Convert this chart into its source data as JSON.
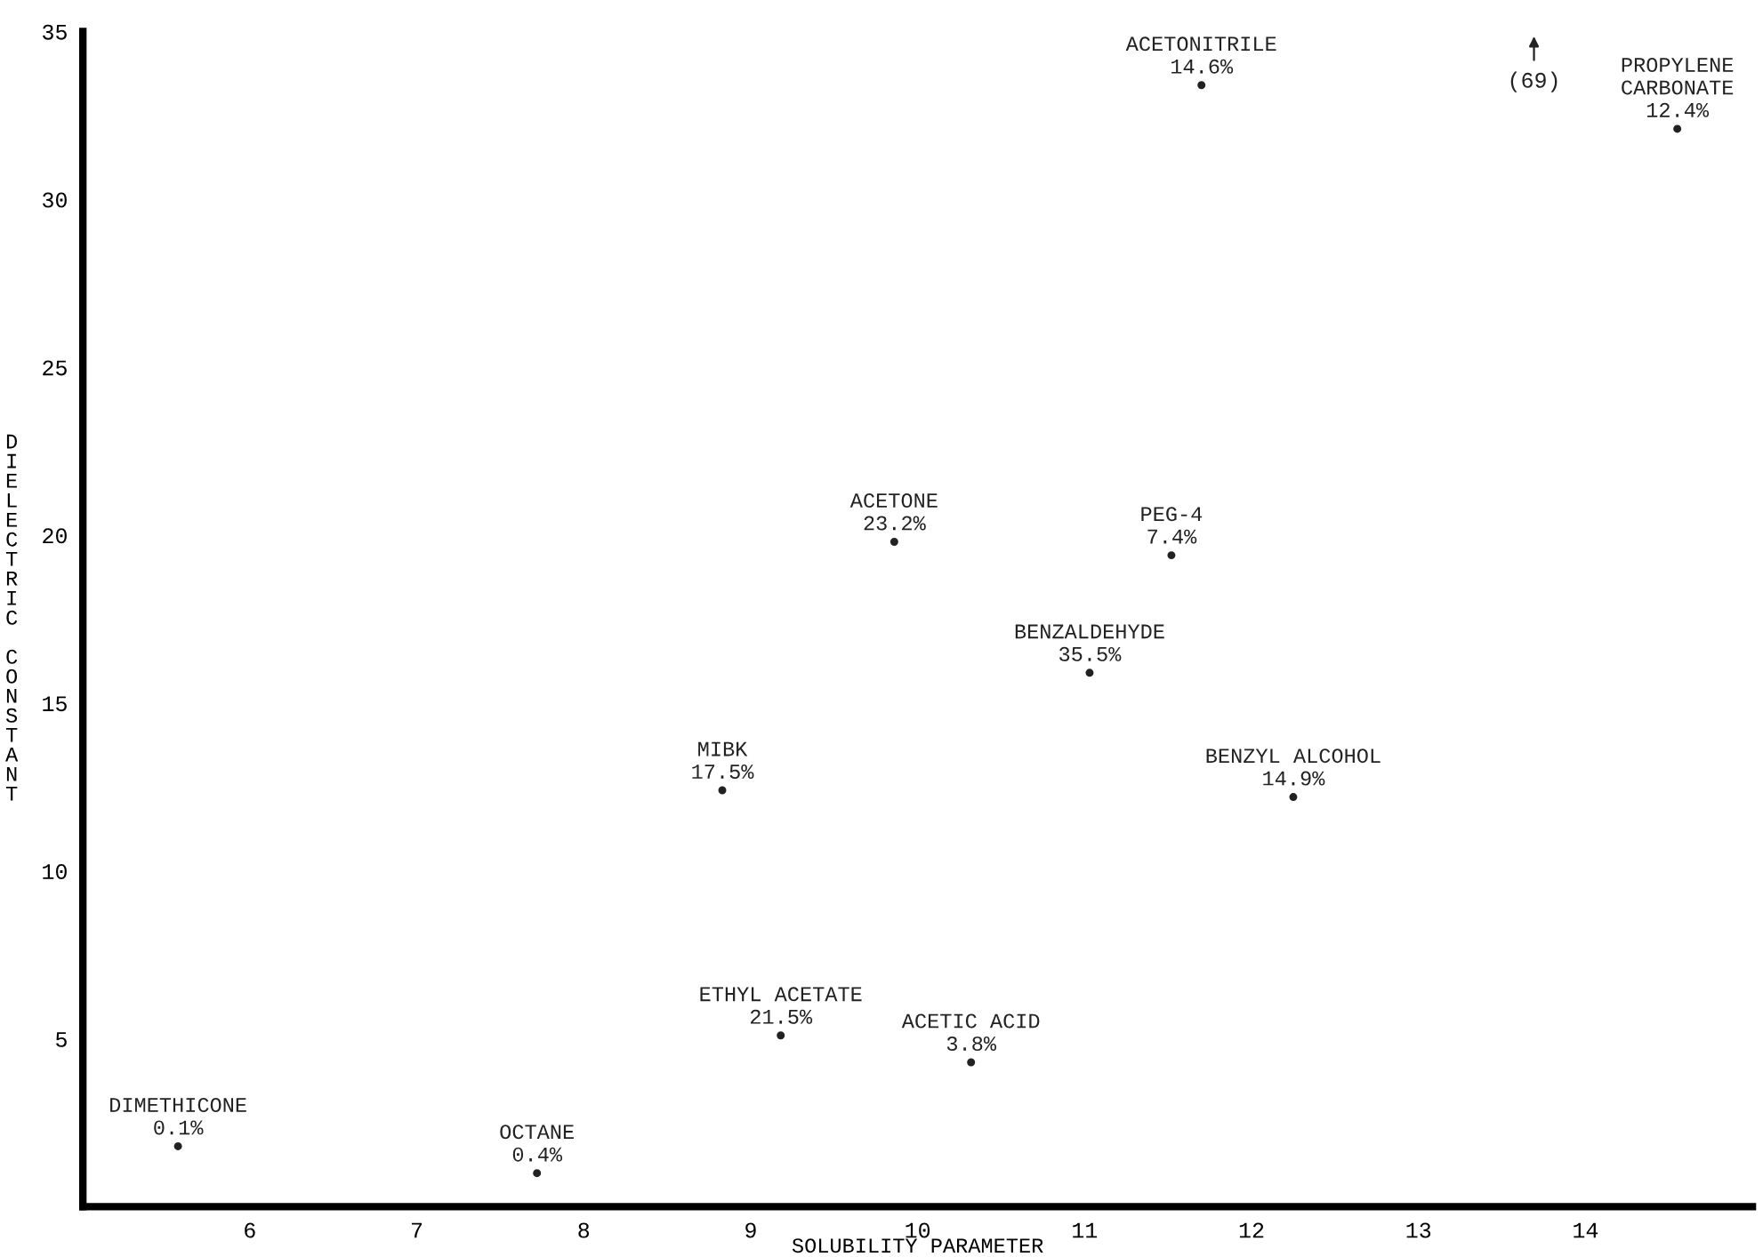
{
  "chart_data": {
    "type": "scatter",
    "xlabel": "SOLUBILITY PARAMETER",
    "ylabel": "DIELECTRIC CONSTANT",
    "xlim": [
      5,
      15
    ],
    "ylim": [
      0,
      35
    ],
    "xticks": [
      6,
      7,
      8,
      9,
      10,
      11,
      12,
      13,
      14
    ],
    "yticks": [
      5,
      10,
      15,
      20,
      25,
      30,
      35
    ],
    "marker": "circle",
    "grid": false,
    "legend": false,
    "series": [
      {
        "color": "#222222",
        "x": [
          5.57,
          7.72,
          9.18,
          10.32,
          8.83,
          9.86,
          11.52,
          11.03,
          12.25,
          11.7,
          14.55
        ],
        "values": [
          1.8,
          1.0,
          5.1,
          4.3,
          12.4,
          19.8,
          19.4,
          15.9,
          12.2,
          33.4,
          32.1
        ],
        "value_labels": [
          "DIMETHICONE\n0.1%",
          "OCTANE\n0.4%",
          "ETHYL ACETATE\n21.5%",
          "ACETIC ACID\n3.8%",
          "MIBK\n17.5%",
          "ACETONE\n23.2%",
          "PEG-4\n7.4%",
          "BENZALDEHYDE\n35.5%",
          "BENZYL ALCOHOL\n14.9%",
          "ACETONITRILE\n14.6%",
          "PROPYLENE\nCARBONATE\n12.4%"
        ]
      }
    ],
    "annotations": [
      "(69)"
    ]
  }
}
